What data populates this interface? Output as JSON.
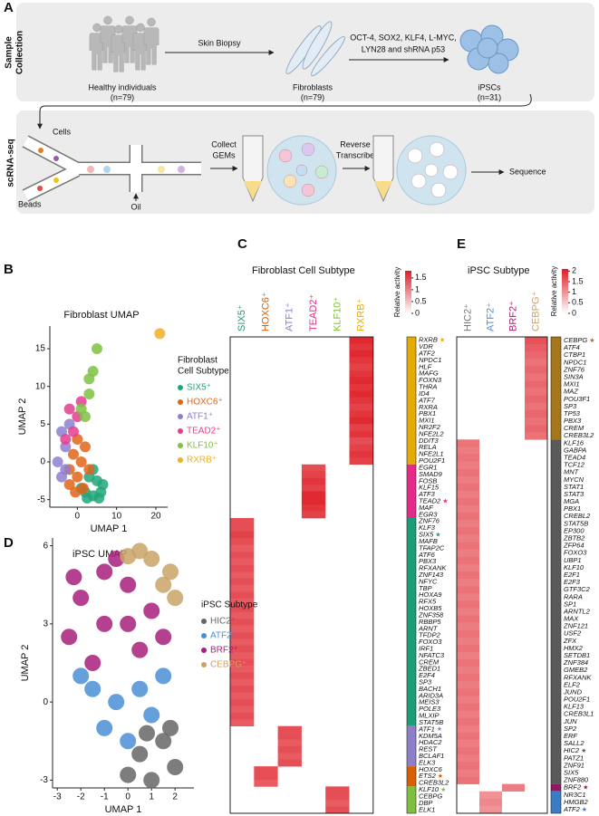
{
  "figure": {
    "panel_labels": [
      "A",
      "B",
      "C",
      "D",
      "E"
    ],
    "sample_collection": [
      "Sample",
      "Collection"
    ],
    "scrna_seq": "scRNA-seq",
    "skin_biopsy": "Skin Biopsy",
    "reprogramming": [
      "OCT-4, SOX2, KLF4, L-MYC,",
      "LYN28 and shRNA p53"
    ],
    "healthy": {
      "label": "Healthy individuals",
      "n": "(n=79)"
    },
    "fibroblasts": {
      "label": "Fibroblasts",
      "n": "(n=79)"
    },
    "ipscs": {
      "label": "iPSCs",
      "n": "(n=31)"
    },
    "cells": "Cells",
    "beads": "Beads",
    "oil": "Oil",
    "collect": [
      "Collect",
      "GEMs"
    ],
    "reverse": [
      "Reverse",
      "Transcribe"
    ],
    "sequence": "Sequence"
  },
  "chart_data": [
    {
      "type": "scatter",
      "title": "Fibroblast UMAP",
      "x_label": "UMAP 1",
      "y_label": "UMAP 2",
      "legend_title": [
        "Fibroblast",
        "Cell Subtype"
      ],
      "xlim": [
        -7,
        23
      ],
      "xticks": [
        0,
        10,
        20
      ],
      "ylim": [
        -6,
        18
      ],
      "yticks": [
        -5,
        0,
        5,
        10,
        15
      ],
      "series": [
        {
          "name": "SIX5⁺",
          "color": "#21a67a",
          "x": [
            2,
            4,
            6,
            5,
            3,
            6.5,
            1,
            4,
            5.5,
            2.5
          ],
          "y": [
            -4,
            -4.5,
            -4,
            -2.5,
            -2,
            -3,
            -3.5,
            -1,
            -4.8,
            -4.8
          ]
        },
        {
          "name": "HOXC6⁺",
          "color": "#e0651a",
          "x": [
            -2,
            0,
            1,
            2,
            -1,
            3,
            0,
            -2,
            1.5,
            -0.5
          ],
          "y": [
            -3,
            -2,
            0,
            2,
            1,
            -1,
            3,
            -1,
            -3.5,
            -4
          ]
        },
        {
          "name": "ATF1⁺",
          "color": "#8f7fd1",
          "x": [
            -4,
            -5,
            -3,
            -4,
            -2,
            -3
          ],
          "y": [
            -2,
            0,
            2,
            4,
            5,
            -1
          ]
        },
        {
          "name": "TEAD2⁺",
          "color": "#e33d8f",
          "x": [
            -1,
            0,
            -2,
            1,
            -3
          ],
          "y": [
            4,
            6,
            7,
            8,
            3
          ]
        },
        {
          "name": "KLF10⁺",
          "color": "#7ec242",
          "x": [
            2,
            3,
            4,
            5,
            1,
            3
          ],
          "y": [
            6,
            9,
            12,
            15,
            7,
            11
          ]
        },
        {
          "name": "RXRB⁺",
          "color": "#f0b020",
          "x": [
            21
          ],
          "y": [
            17
          ]
        }
      ]
    },
    {
      "type": "heatmap",
      "title": "Fibroblast Cell Subtype",
      "colorbar_label": "Relative activity",
      "clim": [
        0,
        1.8
      ],
      "cticks": [
        0,
        0.5,
        1,
        1.5
      ],
      "columns": [
        {
          "name": "SIX5⁺",
          "color": "#1b9e77"
        },
        {
          "name": "HOXC6⁺",
          "color": "#d95f02"
        },
        {
          "name": "ATF1⁺",
          "color": "#8f7fc9"
        },
        {
          "name": "TEAD2⁺",
          "color": "#e7298a"
        },
        {
          "name": "KLF10⁺",
          "color": "#7fbf3f"
        },
        {
          "name": "RXRB⁺",
          "color": "#e6ab02"
        }
      ],
      "groups": [
        {
          "column": 5,
          "color": "#e6ab02",
          "genes": [
            {
              "name": "RXRB",
              "value": 1.7,
              "star": "★"
            },
            {
              "name": "VDR",
              "value": 1.6
            },
            {
              "name": "ATF2",
              "value": 1.7
            },
            {
              "name": "NPDC1",
              "value": 1.6
            },
            {
              "name": "HLF",
              "value": 1.5
            },
            {
              "name": "MAFG",
              "value": 1.6
            },
            {
              "name": "FOXN3",
              "value": 1.7
            },
            {
              "name": "THRA",
              "value": 1.6
            },
            {
              "name": "ID4",
              "value": 1.7
            },
            {
              "name": "ATF7",
              "value": 1.6
            },
            {
              "name": "RXRA",
              "value": 1.5
            },
            {
              "name": "PBX1",
              "value": 1.6
            },
            {
              "name": "MXI1",
              "value": 1.7
            },
            {
              "name": "NR2F2",
              "value": 1.5
            },
            {
              "name": "NFE2L2",
              "value": 1.6
            },
            {
              "name": "DDIT3",
              "value": 1.4
            },
            {
              "name": "RELA",
              "value": 1.5
            },
            {
              "name": "NFE2L1",
              "value": 1.6
            },
            {
              "name": "POU2F1",
              "value": 1.5
            }
          ]
        },
        {
          "column": 3,
          "color": "#e7298a",
          "genes": [
            {
              "name": "EGR1",
              "value": 1.4
            },
            {
              "name": "SMAD9",
              "value": 1.5
            },
            {
              "name": "FOSB",
              "value": 1.6
            },
            {
              "name": "KLF15",
              "value": 1.5
            },
            {
              "name": "ATF3",
              "value": 1.7
            },
            {
              "name": "TEAD2",
              "value": 1.7,
              "star": "★"
            },
            {
              "name": "MAF",
              "value": 1.6
            },
            {
              "name": "EGR3",
              "value": 1.5
            }
          ]
        },
        {
          "column": 0,
          "color": "#1b9e77",
          "genes": [
            {
              "name": "ZNF76",
              "value": 1.4
            },
            {
              "name": "KLF3",
              "value": 1.4
            },
            {
              "name": "SIX5",
              "value": 1.5,
              "star": "★"
            },
            {
              "name": "MAFB",
              "value": 1.4
            },
            {
              "name": "TFAP2C",
              "value": 1.3
            },
            {
              "name": "ATF6",
              "value": 1.4
            },
            {
              "name": "PBX3",
              "value": 1.3
            },
            {
              "name": "RFXANK",
              "value": 1.4
            },
            {
              "name": "ZNF143",
              "value": 1.3
            },
            {
              "name": "NFYC",
              "value": 1.4
            },
            {
              "name": "TBP",
              "value": 1.3
            },
            {
              "name": "HOXA9",
              "value": 1.4
            },
            {
              "name": "RFX5",
              "value": 1.3
            },
            {
              "name": "HOXB5",
              "value": 1.4
            },
            {
              "name": "ZNF358",
              "value": 1.3
            },
            {
              "name": "RBBP5",
              "value": 1.4
            },
            {
              "name": "ARNT",
              "value": 1.3
            },
            {
              "name": "TFDP2",
              "value": 1.4
            },
            {
              "name": "FOXO3",
              "value": 1.3
            },
            {
              "name": "IRF1",
              "value": 1.4
            },
            {
              "name": "NFATC3",
              "value": 1.3
            },
            {
              "name": "CREM",
              "value": 1.4
            },
            {
              "name": "ZBED1",
              "value": 1.3
            },
            {
              "name": "E2F4",
              "value": 1.4
            },
            {
              "name": "SP3",
              "value": 1.3
            },
            {
              "name": "BACH1",
              "value": 1.4
            },
            {
              "name": "ARID3A",
              "value": 1.3
            },
            {
              "name": "MEIS3",
              "value": 1.4
            },
            {
              "name": "POLE3",
              "value": 1.3
            },
            {
              "name": "MLXIP",
              "value": 1.4
            },
            {
              "name": "STAT5B",
              "value": 1.3
            }
          ]
        },
        {
          "column": 2,
          "color": "#8f7fc9",
          "genes": [
            {
              "name": "ATF1",
              "value": 1.4,
              "star": "★"
            },
            {
              "name": "KDM5A",
              "value": 1.4
            },
            {
              "name": "HDAC2",
              "value": 1.3
            },
            {
              "name": "REST",
              "value": 1.4
            },
            {
              "name": "BCLAF1",
              "value": 1.3
            },
            {
              "name": "ELK3",
              "value": 1.4
            }
          ]
        },
        {
          "column": 1,
          "color": "#d95f02",
          "genes": [
            {
              "name": "HOXC6",
              "value": 1.4
            },
            {
              "name": "ETS2",
              "value": 1.4,
              "star": "★"
            },
            {
              "name": "CREB3L2",
              "value": 1.3
            }
          ]
        },
        {
          "column": 4,
          "color": "#7fbf3f",
          "genes": [
            {
              "name": "KLF10",
              "value": 1.4,
              "star": "★"
            },
            {
              "name": "CEBPG",
              "value": 1.4
            },
            {
              "name": "DBP",
              "value": 1.3
            },
            {
              "name": "ELK1",
              "value": 1.4
            }
          ]
        }
      ]
    },
    {
      "type": "scatter",
      "title": "iPSC UMAP",
      "x_label": "UMAP 1",
      "y_label": "UMAP 2",
      "legend_title": [
        "iPSC Subtype"
      ],
      "xlim": [
        -3.2,
        2.8
      ],
      "xticks": [
        -3,
        -2,
        -1,
        0,
        1,
        2
      ],
      "ylim": [
        -3.3,
        6.3
      ],
      "yticks": [
        -3,
        0,
        3,
        6
      ],
      "series": [
        {
          "name": "HIC2⁺",
          "color": "#666666",
          "x": [
            0.5,
            1.5,
            2,
            1,
            0,
            1.8,
            0.8
          ],
          "y": [
            -2,
            -1.5,
            -2.5,
            -3,
            -2.8,
            -1,
            -1.2
          ]
        },
        {
          "name": "ATF2⁺",
          "color": "#4a8fd6",
          "x": [
            -1.5,
            -0.5,
            0.5,
            1.5,
            -1,
            0,
            -2,
            1
          ],
          "y": [
            0.5,
            0,
            0.5,
            1,
            -1,
            -1.5,
            1,
            -0.5
          ]
        },
        {
          "name": "BRF2⁺",
          "color": "#a81f7d",
          "x": [
            -2,
            -1,
            0,
            1,
            -2.5,
            -1,
            0.5,
            -1.5,
            1.5,
            -0.5,
            0,
            -2.3
          ],
          "y": [
            4,
            5,
            4.5,
            3.5,
            2.5,
            3,
            2,
            1.5,
            2.5,
            5.5,
            3,
            4.8
          ]
        },
        {
          "name": "CEBPG⁺",
          "color": "#c9a367",
          "x": [
            1,
            1.8,
            2,
            0.5,
            1.5,
            0
          ],
          "y": [
            5.5,
            5,
            4,
            5.8,
            4.5,
            5.6
          ]
        }
      ]
    },
    {
      "type": "heatmap",
      "title": "iPSC Subtype",
      "colorbar_label": "Relative activity",
      "clim": [
        0,
        2.1
      ],
      "cticks": [
        0,
        0.5,
        1,
        1.5,
        2
      ],
      "columns": [
        {
          "name": "HIC2⁺",
          "color": "#777777"
        },
        {
          "name": "ATF2⁺",
          "color": "#4a8fd6"
        },
        {
          "name": "BRF2⁺",
          "color": "#a81f7d"
        },
        {
          "name": "CEBPG⁺",
          "color": "#c9a367"
        }
      ],
      "groups": [
        {
          "column": 3,
          "color": "#a6761d",
          "genes": [
            {
              "name": "CEBPG",
              "value": 1.6,
              "star": "★"
            },
            {
              "name": "ATF4",
              "value": 1.5
            },
            {
              "name": "CTBP1",
              "value": 1.4
            },
            {
              "name": "NPDC1",
              "value": 1.3
            },
            {
              "name": "ZNF76",
              "value": 1.4
            },
            {
              "name": "SIN3A",
              "value": 1.3
            },
            {
              "name": "MXI1",
              "value": 1.4
            },
            {
              "name": "MAZ",
              "value": 1.3
            },
            {
              "name": "POU3F1",
              "value": 1.4
            },
            {
              "name": "SP3",
              "value": 1.3
            },
            {
              "name": "TP53",
              "value": 1.4
            },
            {
              "name": "PBX3",
              "value": 1.3
            },
            {
              "name": "CREM",
              "value": 1.4
            },
            {
              "name": "CREB3L2",
              "value": 1.3
            }
          ]
        },
        {
          "column": 0,
          "color": "#5a5a5a",
          "genes": [
            {
              "name": "KLF16",
              "value": 1.3
            },
            {
              "name": "GABPA",
              "value": 1.2
            },
            {
              "name": "TEAD4",
              "value": 1.3
            },
            {
              "name": "TCF12",
              "value": 1.2
            },
            {
              "name": "MNT",
              "value": 1.3
            },
            {
              "name": "MYCN",
              "value": 1.2
            },
            {
              "name": "STAT1",
              "value": 1.3
            },
            {
              "name": "STAT3",
              "value": 1.2
            },
            {
              "name": "MGA",
              "value": 1.3
            },
            {
              "name": "PBX1",
              "value": 1.2
            },
            {
              "name": "CREBL2",
              "value": 1.3
            },
            {
              "name": "STAT5B",
              "value": 1.2
            },
            {
              "name": "EP300",
              "value": 1.3
            },
            {
              "name": "ZBTB2",
              "value": 1.2
            },
            {
              "name": "ZFP64",
              "value": 1.3
            },
            {
              "name": "FOXO3",
              "value": 1.2
            },
            {
              "name": "UBP1",
              "value": 1.3
            },
            {
              "name": "KLF10",
              "value": 1.2
            },
            {
              "name": "E2F1",
              "value": 1.3
            },
            {
              "name": "E2F3",
              "value": 1.2
            },
            {
              "name": "GTF3C2",
              "value": 1.3
            },
            {
              "name": "RARA",
              "value": 1.2
            },
            {
              "name": "SP1",
              "value": 1.3
            },
            {
              "name": "ARNTL2",
              "value": 1.2
            },
            {
              "name": "MAX",
              "value": 1.3
            },
            {
              "name": "ZNF121",
              "value": 1.2
            },
            {
              "name": "USF2",
              "value": 1.3
            },
            {
              "name": "ZFX",
              "value": 1.2
            },
            {
              "name": "HMX2",
              "value": 1.3
            },
            {
              "name": "SETDB1",
              "value": 1.2
            },
            {
              "name": "ZNF384",
              "value": 1.3
            },
            {
              "name": "GMEB2",
              "value": 1.2
            },
            {
              "name": "RFXANK",
              "value": 1.3
            },
            {
              "name": "ELF2",
              "value": 1.2
            },
            {
              "name": "JUND",
              "value": 1.3
            },
            {
              "name": "POU2F1",
              "value": 1.2
            },
            {
              "name": "KLF13",
              "value": 1.3
            },
            {
              "name": "CREB3L1",
              "value": 1.2
            },
            {
              "name": "JUN",
              "value": 1.3
            },
            {
              "name": "SP2",
              "value": 1.2
            },
            {
              "name": "ERF",
              "value": 1.3
            },
            {
              "name": "SALL2",
              "value": 1.2
            },
            {
              "name": "HIC2",
              "value": 1.3,
              "star": "★"
            },
            {
              "name": "PATZ1",
              "value": 1.2
            },
            {
              "name": "ZNF91",
              "value": 1.3
            },
            {
              "name": "SIX5",
              "value": 1.2
            },
            {
              "name": "ZNF880",
              "value": 1.3
            }
          ]
        },
        {
          "column": 2,
          "color": "#8b1a5e",
          "genes": [
            {
              "name": "BRF2",
              "value": 1.2,
              "star": "★"
            }
          ]
        },
        {
          "column": 1,
          "color": "#3b7dc4",
          "genes": [
            {
              "name": "NR3C1",
              "value": 1.0
            },
            {
              "name": "HMGB2",
              "value": 1.1
            },
            {
              "name": "ATF2",
              "value": 1.0,
              "star": "★"
            }
          ]
        }
      ]
    }
  ]
}
